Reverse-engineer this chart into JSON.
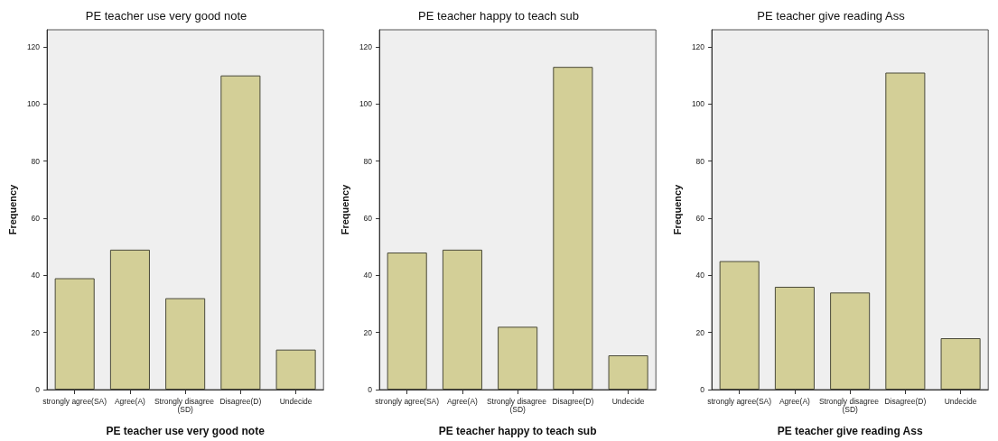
{
  "chart_data": [
    {
      "type": "bar",
      "title": "PE teacher use very good note",
      "xlabel": "PE teacher use very good note",
      "ylabel": "Frequency",
      "categories": [
        "strongly agree(SA)",
        "Agree(A)",
        "Strongly disagree (SD)",
        "Disagree(D)",
        "Undecide"
      ],
      "values": [
        39,
        49,
        32,
        110,
        14
      ],
      "color": "#d3cf97",
      "ylim": [
        0,
        126
      ],
      "yticks": [
        0,
        20,
        40,
        60,
        80,
        100,
        120
      ]
    },
    {
      "type": "bar",
      "title": "PE teacher happy to teach sub",
      "xlabel": "PE teacher happy to teach sub",
      "ylabel": "Frequency",
      "categories": [
        "strongly agree(SA)",
        "Agree(A)",
        "Strongly disagree (SD)",
        "Disagree(D)",
        "Undecide"
      ],
      "values": [
        48,
        49,
        22,
        113,
        12
      ],
      "color": "#d3cf97",
      "ylim": [
        0,
        126
      ],
      "yticks": [
        0,
        20,
        40,
        60,
        80,
        100,
        120
      ]
    },
    {
      "type": "bar",
      "title": "PE teacher give reading Ass",
      "xlabel": "PE teacher give reading Ass",
      "ylabel": "Frequency",
      "categories": [
        "strongly agree(SA)",
        "Agree(A)",
        "Strongly disagree (SD)",
        "Disagree(D)",
        "Undecide"
      ],
      "values": [
        45,
        36,
        34,
        111,
        18
      ],
      "color": "#d3cf97",
      "ylim": [
        0,
        126
      ],
      "yticks": [
        0,
        20,
        40,
        60,
        80,
        100,
        120
      ]
    }
  ]
}
